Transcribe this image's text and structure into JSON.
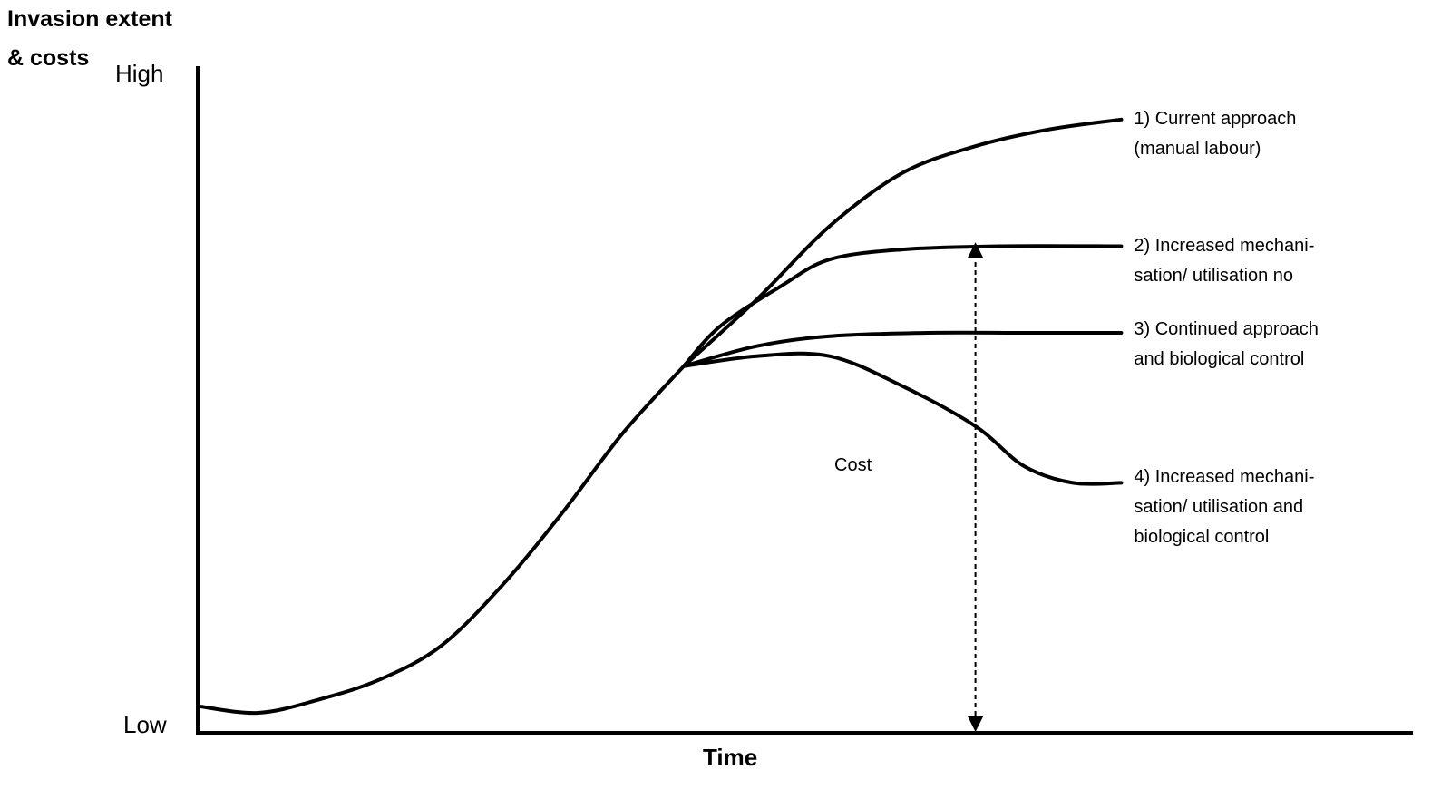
{
  "chart_data": {
    "type": "line",
    "ylabel": [
      "Invasion extent",
      "& costs"
    ],
    "xlabel": "Time",
    "y_tick_labels": {
      "top": "High",
      "bottom": "Low"
    },
    "annotation": {
      "label": "Cost",
      "x": 0.64,
      "y_from": 0.0,
      "y_to": 0.74
    },
    "base_curve": [
      [
        0.0,
        0.04
      ],
      [
        0.05,
        0.03
      ],
      [
        0.1,
        0.05
      ],
      [
        0.15,
        0.08
      ],
      [
        0.2,
        0.13
      ],
      [
        0.25,
        0.22
      ],
      [
        0.3,
        0.33
      ],
      [
        0.35,
        0.45
      ],
      [
        0.4,
        0.55
      ]
    ],
    "series": [
      {
        "name": [
          "1) Current  approach",
          "(manual labour)"
        ],
        "points": [
          [
            0.4,
            0.55
          ],
          [
            0.46,
            0.65
          ],
          [
            0.52,
            0.76
          ],
          [
            0.58,
            0.84
          ],
          [
            0.64,
            0.88
          ],
          [
            0.7,
            0.905
          ],
          [
            0.76,
            0.92
          ]
        ]
      },
      {
        "name": [
          "2) Increased mechani-",
          "sation/ utilisation no"
        ],
        "points": [
          [
            0.4,
            0.55
          ],
          [
            0.43,
            0.61
          ],
          [
            0.48,
            0.67
          ],
          [
            0.52,
            0.71
          ],
          [
            0.58,
            0.725
          ],
          [
            0.66,
            0.73
          ],
          [
            0.76,
            0.73
          ]
        ]
      },
      {
        "name": [
          "3) Continued approach",
          "and biological control"
        ],
        "points": [
          [
            0.4,
            0.55
          ],
          [
            0.46,
            0.58
          ],
          [
            0.52,
            0.595
          ],
          [
            0.6,
            0.6
          ],
          [
            0.68,
            0.6
          ],
          [
            0.76,
            0.6
          ]
        ]
      },
      {
        "name": [
          "4) Increased mechani-",
          "sation/ utilisation  and",
          "biological control"
        ],
        "points": [
          [
            0.4,
            0.55
          ],
          [
            0.46,
            0.565
          ],
          [
            0.52,
            0.565
          ],
          [
            0.58,
            0.52
          ],
          [
            0.64,
            0.46
          ],
          [
            0.68,
            0.4
          ],
          [
            0.72,
            0.375
          ],
          [
            0.76,
            0.375
          ]
        ]
      }
    ]
  }
}
